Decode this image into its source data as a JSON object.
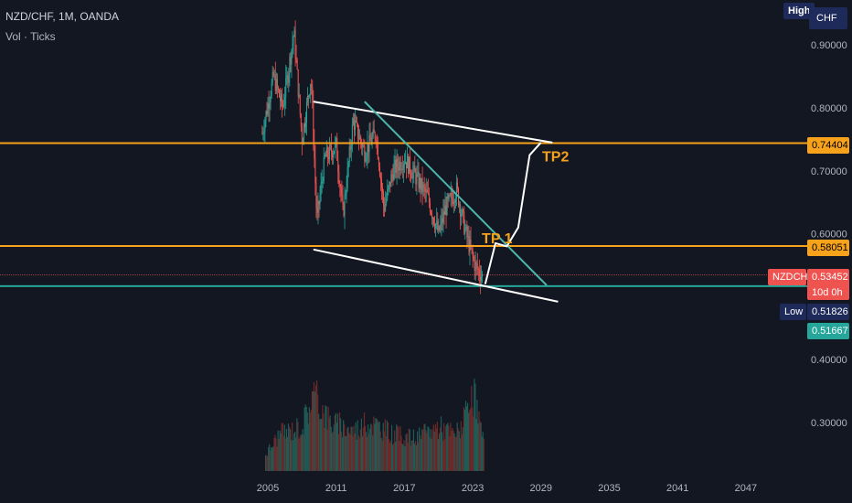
{
  "header": {
    "symbol_line": "NZD/CHF, 1M, OANDA",
    "volume_label": "Vol · Ticks"
  },
  "scale": {
    "high_button": "High",
    "currency_button": "CHF"
  },
  "price_labels": {
    "resistance": "0.74404",
    "support": "0.58051",
    "symbol": "NZDCHF",
    "current": "0.53452",
    "countdown": "10d 0h",
    "low_tag": "Low",
    "low_value": "0.51826",
    "bottom_line": "0.51667"
  },
  "annotations": {
    "tp1": "TP 1",
    "tp2": "TP2"
  },
  "colors": {
    "background": "#131722",
    "orange": "#f7a21b",
    "teal": "#26a69a",
    "red": "#ef5350",
    "navy": "#1e2a5a",
    "white": "#ffffff",
    "trendline_teal": "#4db6ac"
  },
  "chart_data": {
    "type": "candlestick",
    "title": "NZD/CHF, 1M, OANDA",
    "xlabel": "",
    "ylabel": "",
    "x_ticks": [
      "2005",
      "2011",
      "2017",
      "2023",
      "2029",
      "2035",
      "2041",
      "2047"
    ],
    "y_ticks": [
      "0.90000",
      "0.80000",
      "0.70000",
      "0.60000",
      "0.40000",
      "0.30000"
    ],
    "horizontal_lines": [
      0.74404,
      0.58051,
      0.51667
    ],
    "current_price": 0.53452,
    "low": 0.51826,
    "price_path": [
      [
        2004.5,
        0.76
      ],
      [
        2005.5,
        0.85
      ],
      [
        2006.3,
        0.8
      ],
      [
        2007.3,
        0.92
      ],
      [
        2008.0,
        0.75
      ],
      [
        2008.8,
        0.85
      ],
      [
        2009.3,
        0.62
      ],
      [
        2010.0,
        0.72
      ],
      [
        2011.0,
        0.74
      ],
      [
        2011.6,
        0.63
      ],
      [
        2012.5,
        0.78
      ],
      [
        2013.5,
        0.73
      ],
      [
        2014.5,
        0.76
      ],
      [
        2015.2,
        0.64
      ],
      [
        2016.0,
        0.7
      ],
      [
        2017.0,
        0.72
      ],
      [
        2018.0,
        0.69
      ],
      [
        2019.0,
        0.66
      ],
      [
        2020.0,
        0.6
      ],
      [
        2020.6,
        0.64
      ],
      [
        2021.6,
        0.67
      ],
      [
        2022.4,
        0.6
      ],
      [
        2023.2,
        0.55
      ],
      [
        2023.9,
        0.53
      ]
    ],
    "volume_envelope": [
      [
        2004.8,
        0.2
      ],
      [
        2006.0,
        0.45
      ],
      [
        2008.0,
        0.55
      ],
      [
        2009.0,
        0.95
      ],
      [
        2010.5,
        0.6
      ],
      [
        2012.5,
        0.5
      ],
      [
        2014.0,
        0.6
      ],
      [
        2016.0,
        0.45
      ],
      [
        2018.0,
        0.4
      ],
      [
        2020.0,
        0.55
      ],
      [
        2021.5,
        0.45
      ],
      [
        2022.5,
        0.7
      ],
      [
        2023.2,
        0.9
      ],
      [
        2024.0,
        0.3
      ]
    ],
    "drawings": {
      "channel_upper": [
        [
          2009.0,
          0.81
        ],
        [
          2030.0,
          0.745
        ]
      ],
      "channel_lower": [
        [
          2009.0,
          0.575
        ],
        [
          2030.5,
          0.492
        ]
      ],
      "teal_trendline": [
        [
          2013.5,
          0.81
        ],
        [
          2029.5,
          0.518
        ]
      ],
      "projection_path": [
        [
          2024.1,
          0.52
        ],
        [
          2025.0,
          0.585
        ],
        [
          2026.0,
          0.58
        ],
        [
          2027.0,
          0.61
        ],
        [
          2028.0,
          0.725
        ],
        [
          2029.0,
          0.745
        ]
      ]
    }
  }
}
